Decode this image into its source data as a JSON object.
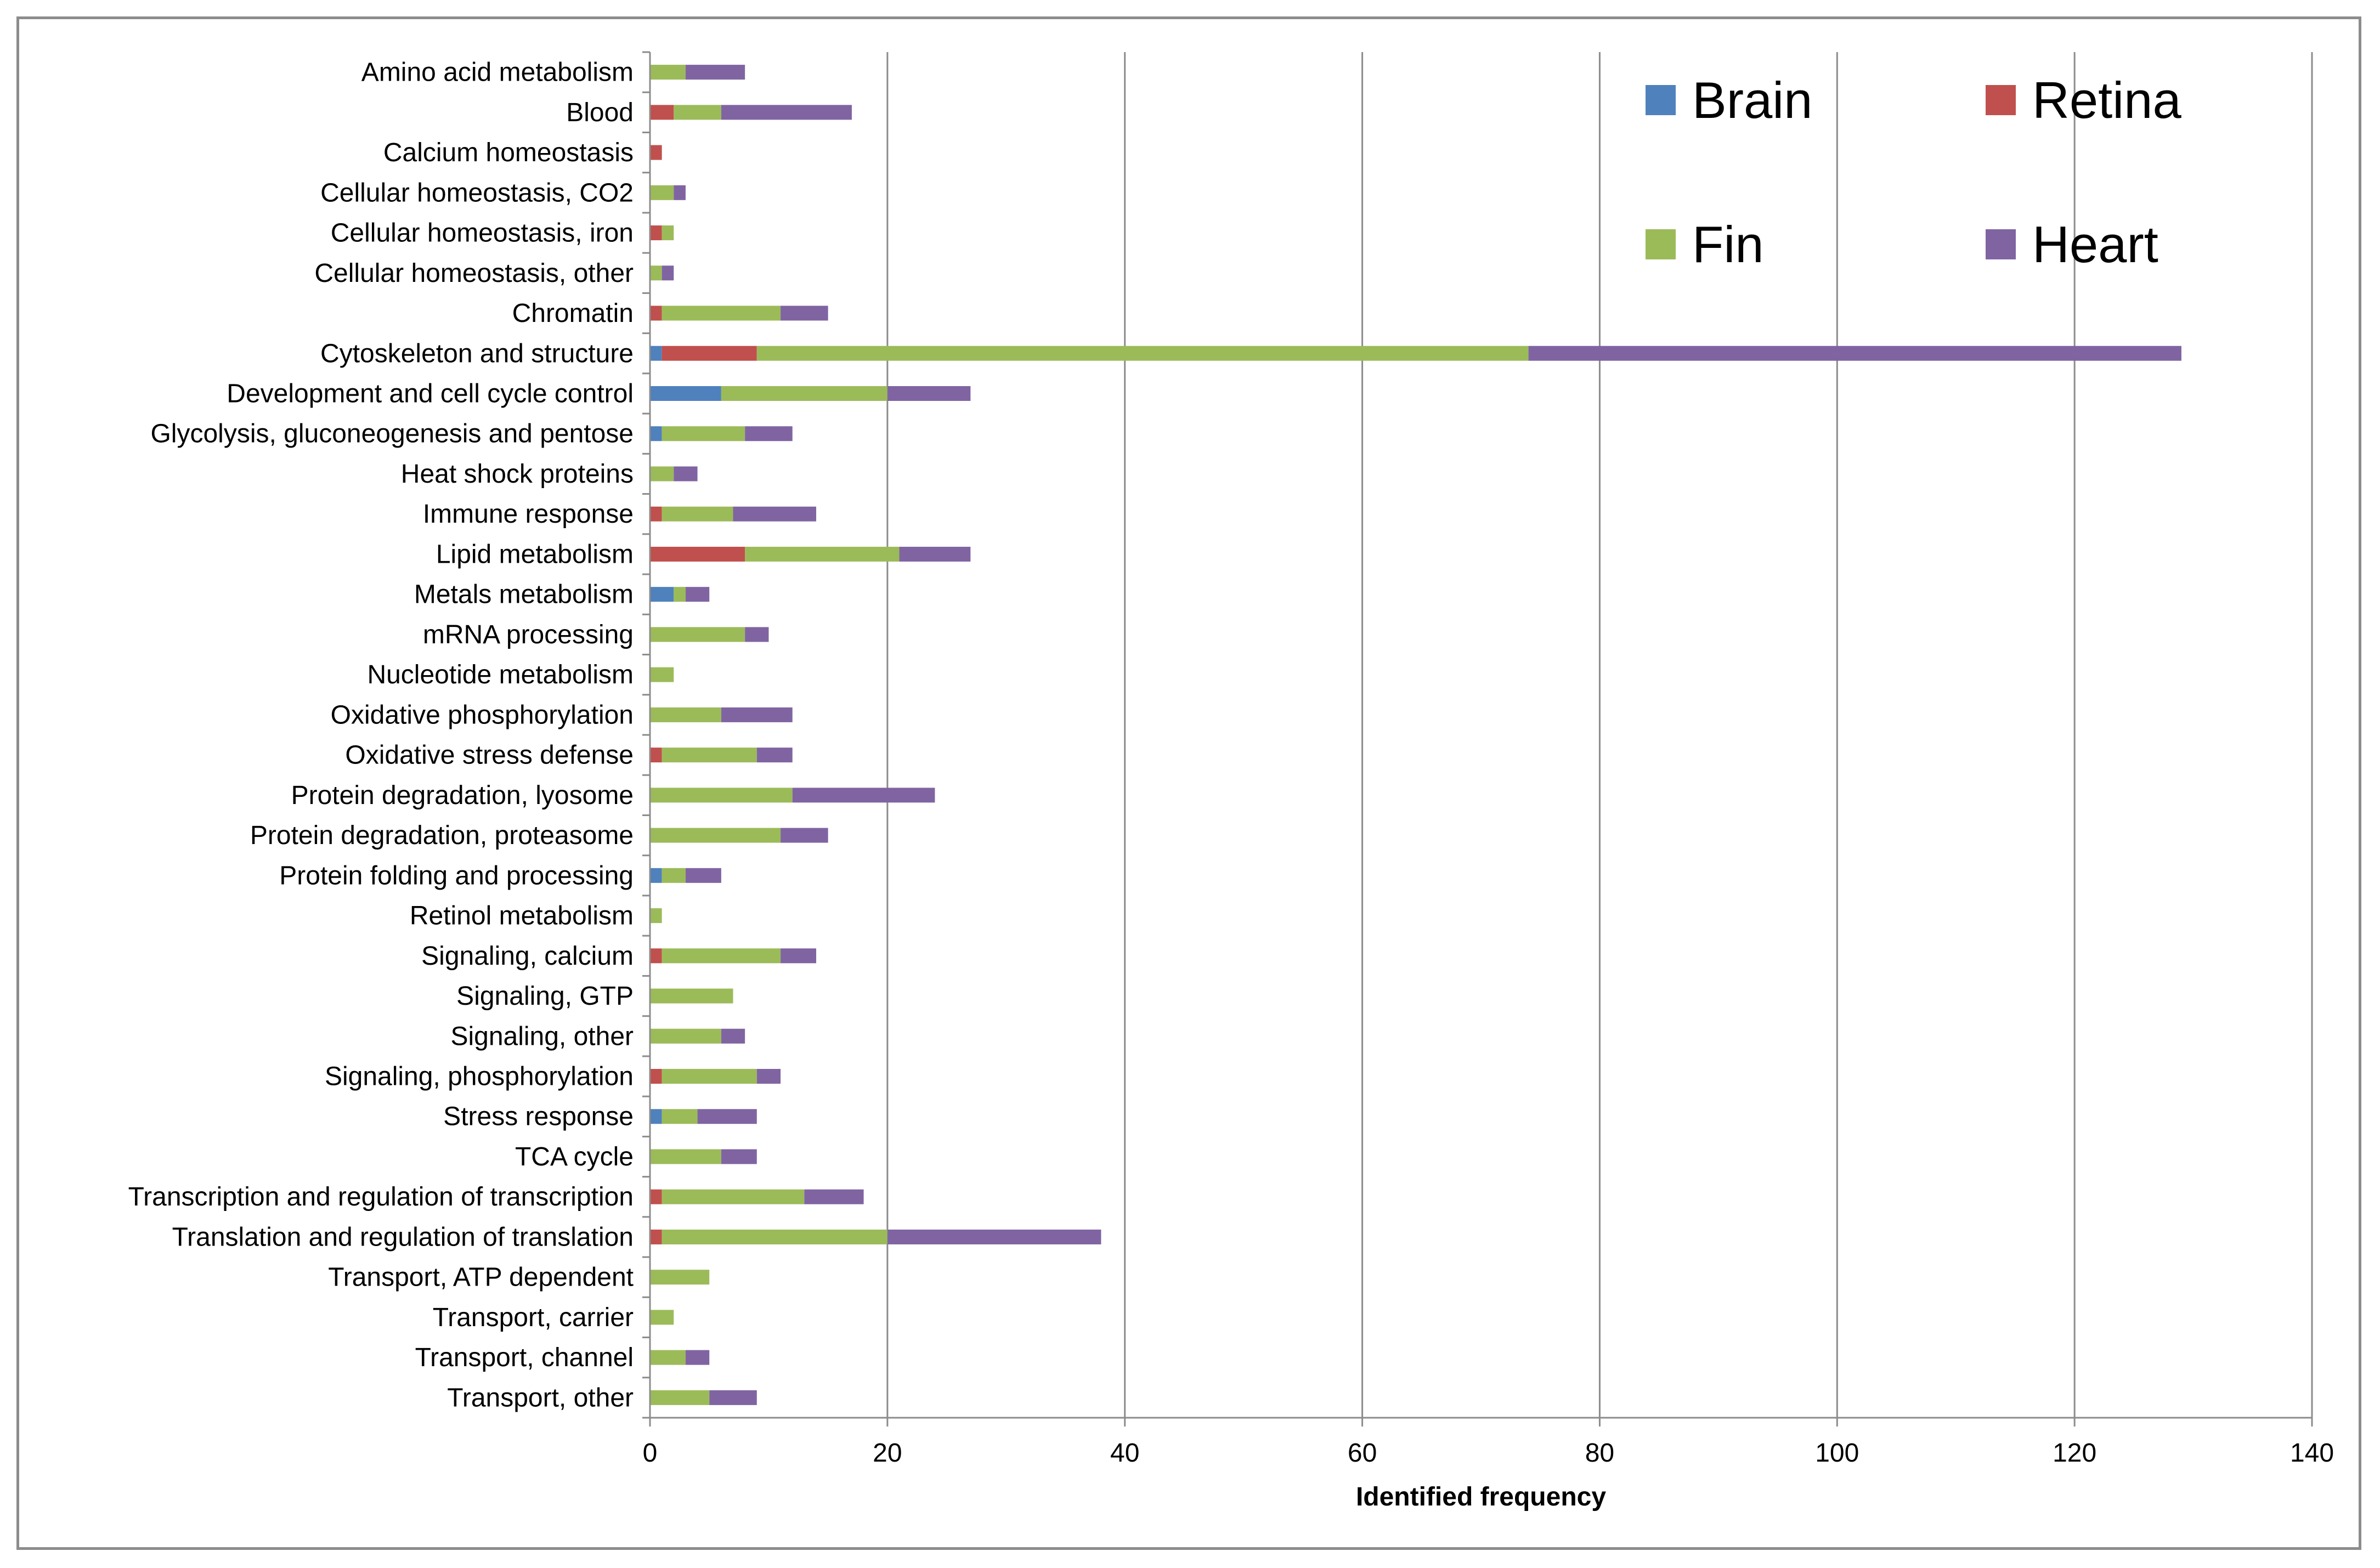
{
  "chart_data": {
    "type": "bar",
    "orientation": "horizontal",
    "stacked": true,
    "title": "",
    "xlabel": "Identified frequency",
    "ylabel": "",
    "xlim": [
      0,
      140
    ],
    "xticks": [
      0,
      20,
      40,
      60,
      80,
      100,
      120,
      140
    ],
    "grid": "vertical",
    "legend_position": "top-right",
    "categories": [
      "Amino acid metabolism",
      "Blood",
      "Calcium homeostasis",
      "Cellular homeostasis, CO2",
      "Cellular homeostasis, iron",
      "Cellular homeostasis, other",
      "Chromatin",
      "Cytoskeleton and structure",
      "Development and cell cycle control",
      "Glycolysis, gluconeogenesis and pentose",
      "Heat shock proteins",
      "Immune response",
      "Lipid metabolism",
      "Metals metabolism",
      "mRNA processing",
      "Nucleotide metabolism",
      "Oxidative phosphorylation",
      "Oxidative stress defense",
      "Protein degradation, lyosome",
      "Protein degradation, proteasome",
      "Protein folding and processing",
      "Retinol metabolism",
      "Signaling, calcium",
      "Signaling, GTP",
      "Signaling, other",
      "Signaling, phosphorylation",
      "Stress response",
      "TCA cycle",
      "Transcription and regulation of transcription",
      "Translation and regulation of translation",
      "Transport, ATP dependent",
      "Transport, carrier",
      "Transport, channel",
      "Transport, other"
    ],
    "series": [
      {
        "name": "Brain",
        "color": "#4f81bd",
        "values": [
          0,
          0,
          0,
          0,
          0,
          0,
          0,
          1,
          6,
          1,
          0,
          0,
          0,
          2,
          0,
          0,
          0,
          0,
          0,
          0,
          1,
          0,
          0,
          0,
          0,
          0,
          1,
          0,
          0,
          0,
          0,
          0,
          0,
          0
        ]
      },
      {
        "name": "Retina",
        "color": "#c0504d",
        "values": [
          0,
          2,
          1,
          0,
          1,
          0,
          1,
          8,
          0,
          0,
          0,
          1,
          8,
          0,
          0,
          0,
          0,
          1,
          0,
          0,
          0,
          0,
          1,
          0,
          0,
          1,
          0,
          0,
          1,
          1,
          0,
          0,
          0,
          0
        ]
      },
      {
        "name": "Fin",
        "color": "#9bbb59",
        "values": [
          3,
          4,
          0,
          2,
          1,
          1,
          10,
          65,
          14,
          7,
          2,
          6,
          13,
          1,
          8,
          2,
          6,
          8,
          12,
          11,
          2,
          1,
          10,
          7,
          6,
          8,
          3,
          6,
          12,
          19,
          5,
          2,
          3,
          5
        ]
      },
      {
        "name": "Heart",
        "color": "#8064a2",
        "values": [
          5,
          11,
          0,
          1,
          0,
          1,
          4,
          55,
          7,
          4,
          2,
          7,
          6,
          2,
          2,
          0,
          6,
          3,
          12,
          4,
          3,
          0,
          3,
          0,
          2,
          2,
          5,
          3,
          5,
          18,
          0,
          0,
          2,
          4
        ]
      }
    ]
  }
}
